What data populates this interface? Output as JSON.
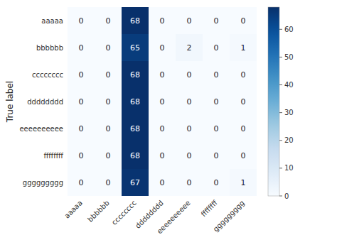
{
  "chart_data": {
    "type": "heatmap",
    "x_categories": [
      "aaaaa",
      "bbbbbb",
      "cccccccc",
      "dddddddd",
      "eeeeeeeeee",
      "ffffffff",
      "ggggggggg"
    ],
    "y_categories": [
      "aaaaa",
      "bbbbbb",
      "cccccccc",
      "dddddddd",
      "eeeeeeeeee",
      "ffffffff",
      "ggggggggg"
    ],
    "ylabel": "True label",
    "values": [
      [
        0,
        0,
        68,
        0,
        0,
        0,
        0
      ],
      [
        0,
        0,
        65,
        0,
        2,
        0,
        1
      ],
      [
        0,
        0,
        68,
        0,
        0,
        0,
        0
      ],
      [
        0,
        0,
        68,
        0,
        0,
        0,
        0
      ],
      [
        0,
        0,
        68,
        0,
        0,
        0,
        0
      ],
      [
        0,
        0,
        68,
        0,
        0,
        0,
        0
      ],
      [
        0,
        0,
        67,
        0,
        0,
        0,
        1
      ]
    ],
    "data_labels": true,
    "colorbar_range": [
      0,
      68
    ],
    "colorbar_ticks": [
      0,
      10,
      20,
      30,
      40,
      50,
      60
    ]
  }
}
